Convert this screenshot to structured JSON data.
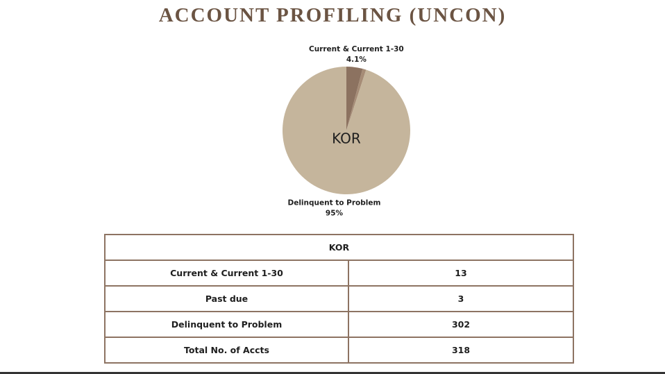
{
  "chart_data": {
    "type": "pie",
    "title": "ACCOUNT PROFILING (UNCON)",
    "center_label": "KOR",
    "categories": [
      "Current & Current 1-30",
      null,
      "Delinquent to Problem"
    ],
    "values": [
      4.1,
      0.9,
      95
    ],
    "value_labels": [
      "4.1%",
      null,
      "95%"
    ],
    "colors": [
      "#8c7260",
      "#a68c76",
      "#c5b59c"
    ]
  },
  "table": {
    "header": "KOR",
    "rows": [
      [
        "Current & Current 1-30",
        13
      ],
      [
        "Past due",
        3
      ],
      [
        "Delinquent to Problem",
        302
      ],
      [
        "Total No. of Accts",
        318
      ]
    ]
  }
}
